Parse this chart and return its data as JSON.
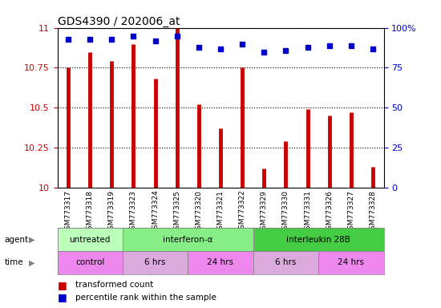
{
  "title": "GDS4390 / 202006_at",
  "samples": [
    "GSM773317",
    "GSM773318",
    "GSM773319",
    "GSM773323",
    "GSM773324",
    "GSM773325",
    "GSM773320",
    "GSM773321",
    "GSM773322",
    "GSM773329",
    "GSM773330",
    "GSM773331",
    "GSM773326",
    "GSM773327",
    "GSM773328"
  ],
  "transformed_count": [
    10.75,
    10.85,
    10.79,
    10.9,
    10.68,
    11.0,
    10.52,
    10.37,
    10.75,
    10.12,
    10.29,
    10.49,
    10.45,
    10.47,
    10.13
  ],
  "percentile_rank": [
    93,
    93,
    93,
    95,
    92,
    95,
    88,
    87,
    90,
    85,
    86,
    88,
    89,
    89,
    87
  ],
  "ylim": [
    10,
    11
  ],
  "yticks": [
    10,
    10.25,
    10.5,
    10.75,
    11
  ],
  "ytick_labels": [
    "10",
    "10.25",
    "10.5",
    "10.75",
    "11"
  ],
  "right_yticks": [
    0,
    25,
    50,
    75,
    100
  ],
  "right_ytick_labels": [
    "0",
    "25",
    "50",
    "75",
    "100%"
  ],
  "bar_color": "#cc0000",
  "dot_color": "#0000cc",
  "agent_groups": [
    {
      "label": "untreated",
      "start": 0,
      "end": 3,
      "color": "#bbffbb"
    },
    {
      "label": "interferon-α",
      "start": 3,
      "end": 9,
      "color": "#88ee88"
    },
    {
      "label": "interleukin 28B",
      "start": 9,
      "end": 15,
      "color": "#44cc44"
    }
  ],
  "time_groups": [
    {
      "label": "control",
      "start": 0,
      "end": 3,
      "color": "#ee88ee"
    },
    {
      "label": "6 hrs",
      "start": 3,
      "end": 6,
      "color": "#ddaadd"
    },
    {
      "label": "24 hrs",
      "start": 6,
      "end": 9,
      "color": "#ee88ee"
    },
    {
      "label": "6 hrs",
      "start": 9,
      "end": 12,
      "color": "#ddaadd"
    },
    {
      "label": "24 hrs",
      "start": 12,
      "end": 15,
      "color": "#ee88ee"
    }
  ],
  "legend_items": [
    {
      "label": "transformed count",
      "color": "#cc0000"
    },
    {
      "label": "percentile rank within the sample",
      "color": "#0000cc"
    }
  ],
  "background_color": "#ffffff",
  "plot_bg_color": "#ffffff",
  "axis_label_color_left": "#cc0000",
  "axis_label_color_right": "#0000cc"
}
